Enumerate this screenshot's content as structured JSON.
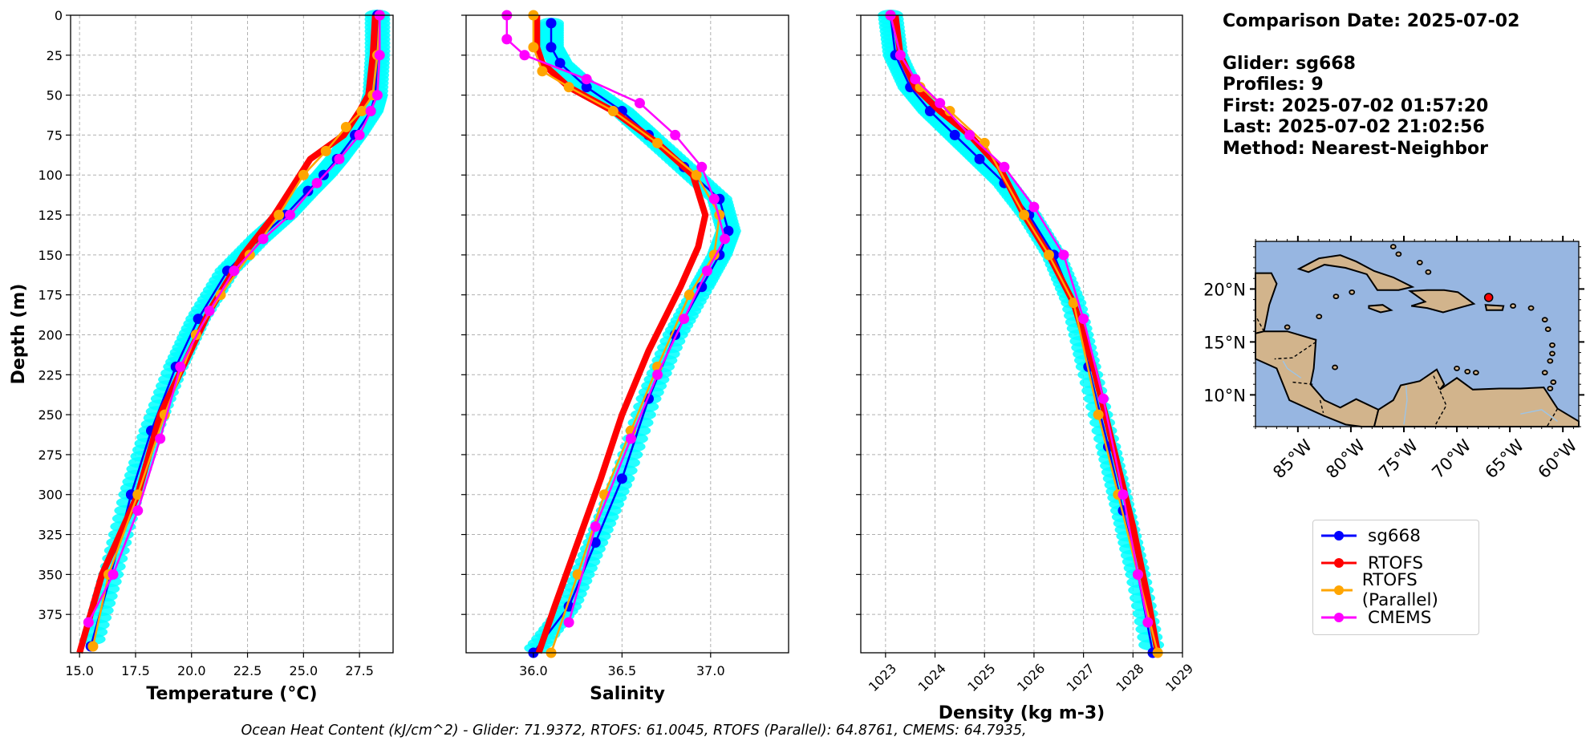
{
  "info": {
    "comparison_date": "Comparison Date: 2025-07-02",
    "glider": "Glider: sg668",
    "profiles": "Profiles: 9",
    "first": "First: 2025-07-02 01:57:20",
    "last": "Last: 2025-07-02 21:02:56",
    "method": "Method: Nearest-Neighbor"
  },
  "legend": [
    {
      "label": "sg668",
      "color": "#0000ff"
    },
    {
      "label": "RTOFS",
      "color": "#ff0000"
    },
    {
      "label": "RTOFS (Parallel)",
      "color": "#ffa500"
    },
    {
      "label": "CMEMS",
      "color": "#ff00ff"
    }
  ],
  "footer": "Ocean Heat Content (kJ/cm^2) - Glider: 71.9372,  RTOFS: 61.0045,  RTOFS (Parallel): 64.8761,  CMEMS: 64.7935,",
  "map": {
    "lat_ticks": [
      "20°N",
      "15°N",
      "10°N"
    ],
    "lon_ticks": [
      "85°W",
      "80°W",
      "75°W",
      "70°W",
      "65°W",
      "60°W"
    ],
    "marker": {
      "lon": -67.0,
      "lat": 19.2
    },
    "ocean_color": "#97b6e1",
    "land_color": "#d2b48c"
  },
  "chart_data": [
    {
      "type": "line",
      "xlabel": "Temperature (°C)",
      "ylabel": "Depth (m)",
      "xlim": [
        14.6,
        29.0
      ],
      "ylim": [
        399,
        0
      ],
      "xticks": [
        15.0,
        17.5,
        20.0,
        22.5,
        25.0,
        27.5
      ],
      "xtick_labels": [
        "15.0",
        "17.5",
        "20.0",
        "22.5",
        "25.0",
        "27.5"
      ],
      "yticks": [
        0,
        25,
        50,
        75,
        100,
        125,
        150,
        175,
        200,
        225,
        250,
        275,
        300,
        325,
        350,
        375
      ],
      "grid": true,
      "series": [
        {
          "name": "sg668",
          "color": "#0000ff",
          "x": [
            28.3,
            28.3,
            28.2,
            28.0,
            27.3,
            26.5,
            25.9,
            25.2,
            24.2,
            23.0,
            21.6,
            20.3,
            19.3,
            18.2,
            17.3,
            16.4,
            15.5
          ],
          "y": [
            0,
            25,
            50,
            60,
            75,
            90,
            100,
            110,
            125,
            140,
            160,
            190,
            220,
            260,
            300,
            350,
            395
          ]
        },
        {
          "name": "RTOFS",
          "color": "#ff0000",
          "x": [
            28.2,
            28.1,
            27.9,
            27.5,
            26.8,
            25.3,
            23.7,
            22.3,
            20.8,
            18.6,
            17.6,
            16.0,
            15.0
          ],
          "y": [
            0,
            25,
            50,
            60,
            75,
            90,
            125,
            150,
            185,
            250,
            300,
            350,
            399
          ]
        },
        {
          "name": "RTOFS (Parallel)",
          "color": "#ffa500",
          "x": [
            28.4,
            28.3,
            28.1,
            27.6,
            26.9,
            26.0,
            25.0,
            23.9,
            22.6,
            21.3,
            20.2,
            18.8,
            17.6,
            16.3,
            15.6
          ],
          "y": [
            0,
            25,
            50,
            60,
            70,
            85,
            100,
            125,
            150,
            175,
            200,
            250,
            300,
            350,
            395
          ]
        },
        {
          "name": "CMEMS",
          "color": "#ff00ff",
          "x": [
            28.4,
            28.4,
            28.3,
            28.0,
            27.5,
            26.6,
            25.6,
            24.4,
            23.2,
            21.9,
            20.8,
            19.5,
            18.6,
            17.6,
            16.5,
            15.4
          ],
          "y": [
            0,
            25,
            50,
            60,
            75,
            90,
            105,
            125,
            140,
            160,
            185,
            220,
            265,
            310,
            350,
            380
          ]
        }
      ]
    },
    {
      "type": "line",
      "xlabel": "Salinity",
      "xlim": [
        35.62,
        37.44
      ],
      "ylim": [
        399,
        0
      ],
      "xticks": [
        36.0,
        36.5,
        37.0
      ],
      "xtick_labels": [
        "36.0",
        "36.5",
        "37.0"
      ],
      "yticks": [
        0,
        25,
        50,
        75,
        100,
        125,
        150,
        175,
        200,
        225,
        250,
        275,
        300,
        325,
        350,
        375
      ],
      "grid": true,
      "series": [
        {
          "name": "sg668",
          "color": "#0000ff",
          "x": [
            36.1,
            36.1,
            36.15,
            36.3,
            36.5,
            36.65,
            36.85,
            37.05,
            37.1,
            37.05,
            36.95,
            36.8,
            36.65,
            36.5,
            36.35,
            36.2,
            36.0
          ],
          "y": [
            5,
            20,
            30,
            45,
            60,
            75,
            95,
            115,
            135,
            150,
            170,
            200,
            240,
            290,
            330,
            370,
            399
          ]
        },
        {
          "name": "RTOFS",
          "color": "#ff0000",
          "x": [
            36.02,
            36.02,
            36.05,
            36.2,
            36.45,
            36.7,
            36.9,
            36.97,
            36.93,
            36.83,
            36.65,
            36.5,
            36.38,
            36.25,
            36.12,
            36.03
          ],
          "y": [
            0,
            20,
            30,
            45,
            60,
            80,
            100,
            125,
            145,
            170,
            210,
            250,
            290,
            330,
            370,
            399
          ]
        },
        {
          "name": "RTOFS (Parallel)",
          "color": "#ffa500",
          "x": [
            36.0,
            36.0,
            36.05,
            36.2,
            36.45,
            36.7,
            36.92,
            37.05,
            37.02,
            36.88,
            36.7,
            36.55,
            36.4,
            36.25,
            36.1
          ],
          "y": [
            0,
            20,
            35,
            45,
            60,
            80,
            100,
            125,
            150,
            175,
            220,
            260,
            300,
            350,
            399
          ]
        },
        {
          "name": "CMEMS",
          "color": "#ff00ff",
          "x": [
            35.85,
            35.85,
            35.95,
            36.3,
            36.6,
            36.8,
            36.95,
            37.02,
            37.08,
            36.98,
            36.85,
            36.7,
            36.55,
            36.35,
            36.2
          ],
          "y": [
            0,
            15,
            25,
            40,
            55,
            75,
            95,
            115,
            140,
            160,
            190,
            225,
            265,
            320,
            380
          ]
        }
      ]
    },
    {
      "type": "line",
      "xlabel": "Density (kg m-3)",
      "xlim": [
        1022.5,
        1029.0
      ],
      "ylim": [
        399,
        0
      ],
      "xticks": [
        1023,
        1024,
        1025,
        1026,
        1027,
        1028,
        1029
      ],
      "xtick_labels": [
        "1023",
        "1024",
        "1025",
        "1026",
        "1027",
        "1028",
        "1029"
      ],
      "yticks": [
        0,
        25,
        50,
        75,
        100,
        125,
        150,
        175,
        200,
        225,
        250,
        275,
        300,
        325,
        350,
        375
      ],
      "grid": true,
      "series": [
        {
          "name": "sg668",
          "color": "#0000ff",
          "x": [
            1023.1,
            1023.2,
            1023.5,
            1023.9,
            1024.4,
            1024.9,
            1025.4,
            1025.9,
            1026.4,
            1026.8,
            1027.1,
            1027.5,
            1027.8,
            1028.1,
            1028.4
          ],
          "y": [
            0,
            25,
            45,
            60,
            75,
            90,
            105,
            125,
            150,
            180,
            220,
            270,
            310,
            350,
            399
          ]
        },
        {
          "name": "RTOFS",
          "color": "#ff0000",
          "x": [
            1023.2,
            1023.3,
            1023.6,
            1024.1,
            1024.7,
            1025.3,
            1025.8,
            1026.3,
            1026.8,
            1027.2,
            1027.6,
            1028.0,
            1028.3,
            1028.5
          ],
          "y": [
            0,
            25,
            45,
            60,
            75,
            95,
            125,
            150,
            180,
            220,
            270,
            320,
            365,
            399
          ]
        },
        {
          "name": "RTOFS (Parallel)",
          "color": "#ffa500",
          "x": [
            1023.1,
            1023.3,
            1023.7,
            1024.3,
            1025.0,
            1025.8,
            1026.3,
            1026.8,
            1027.3,
            1027.7,
            1028.1,
            1028.5
          ],
          "y": [
            0,
            25,
            45,
            60,
            80,
            125,
            150,
            180,
            250,
            300,
            350,
            399
          ]
        },
        {
          "name": "CMEMS",
          "color": "#ff00ff",
          "x": [
            1023.1,
            1023.3,
            1023.6,
            1024.1,
            1024.7,
            1025.4,
            1026.0,
            1026.6,
            1027.0,
            1027.4,
            1027.8,
            1028.1,
            1028.3
          ],
          "y": [
            0,
            25,
            40,
            55,
            75,
            95,
            120,
            150,
            190,
            240,
            300,
            350,
            380
          ]
        }
      ]
    }
  ]
}
